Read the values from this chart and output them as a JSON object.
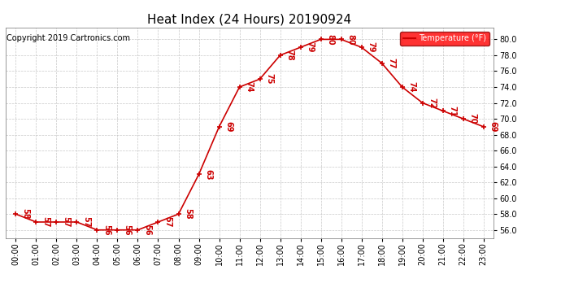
{
  "title": "Heat Index (24 Hours) 20190924",
  "copyright": "Copyright 2019 Cartronics.com",
  "legend_label": "Temperature (°F)",
  "hours": [
    "00:00",
    "01:00",
    "02:00",
    "03:00",
    "04:00",
    "05:00",
    "06:00",
    "07:00",
    "08:00",
    "09:00",
    "10:00",
    "11:00",
    "12:00",
    "13:00",
    "14:00",
    "15:00",
    "16:00",
    "17:00",
    "18:00",
    "19:00",
    "20:00",
    "21:00",
    "22:00",
    "23:00"
  ],
  "values": [
    58,
    57,
    57,
    57,
    56,
    56,
    56,
    57,
    58,
    63,
    69,
    74,
    75,
    78,
    79,
    80,
    80,
    79,
    77,
    74,
    72,
    71,
    70,
    69
  ],
  "line_color": "#cc0000",
  "marker_color": "#cc0000",
  "label_color": "#cc0000",
  "background_color": "#ffffff",
  "grid_color": "#bbbbbb",
  "ylim": [
    55.0,
    81.5
  ],
  "yticks": [
    56.0,
    58.0,
    60.0,
    62.0,
    64.0,
    66.0,
    68.0,
    70.0,
    72.0,
    74.0,
    76.0,
    78.0,
    80.0
  ],
  "title_fontsize": 11,
  "label_fontsize": 7,
  "tick_fontsize": 7,
  "copyright_fontsize": 7
}
